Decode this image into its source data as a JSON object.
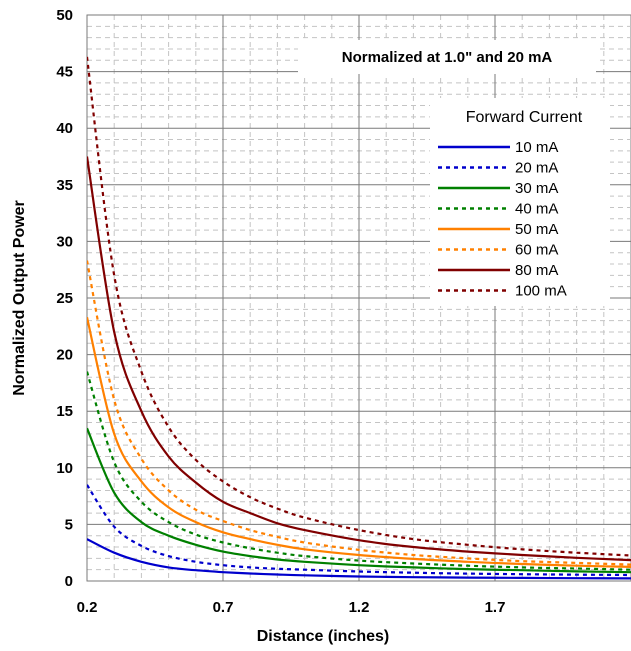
{
  "chart_data": {
    "type": "line",
    "annotation": "Normalized at 1.0\" and 20 mA",
    "xlabel": "Distance (inches)",
    "ylabel": "Normalized Output Power",
    "xlim": [
      0.2,
      2.2
    ],
    "ylim": [
      0,
      50
    ],
    "x_ticks": [
      "0.2",
      "0.7",
      "1.2",
      "1.7"
    ],
    "x_tick_values": [
      0.2,
      0.7,
      1.2,
      1.7
    ],
    "y_ticks": [
      "0",
      "5",
      "10",
      "15",
      "20",
      "25",
      "30",
      "35",
      "40",
      "45",
      "50"
    ],
    "y_tick_values": [
      0,
      5,
      10,
      15,
      20,
      25,
      30,
      35,
      40,
      45,
      50
    ],
    "grid": true,
    "legend_title": "Forward Current",
    "legend_position": "top-right",
    "x": [
      0.2,
      0.3,
      0.4,
      0.5,
      0.6,
      0.7,
      0.8,
      0.9,
      1.0,
      1.2,
      1.4,
      1.6,
      1.8,
      2.0,
      2.2
    ],
    "series": [
      {
        "name": "10 mA",
        "color": "#0000cc",
        "dash": "solid",
        "values": [
          3.7,
          2.5,
          1.7,
          1.2,
          0.95,
          0.78,
          0.66,
          0.57,
          0.5,
          0.4,
          0.34,
          0.3,
          0.27,
          0.25,
          0.23
        ]
      },
      {
        "name": "20 mA",
        "color": "#0000cc",
        "dash": "dotted",
        "values": [
          8.5,
          4.8,
          3.1,
          2.2,
          1.7,
          1.4,
          1.2,
          1.08,
          1.0,
          0.84,
          0.73,
          0.65,
          0.6,
          0.56,
          0.53
        ]
      },
      {
        "name": "30 mA",
        "color": "#008000",
        "dash": "solid",
        "values": [
          13.5,
          7.8,
          5.2,
          4.0,
          3.2,
          2.6,
          2.2,
          1.9,
          1.7,
          1.4,
          1.2,
          1.05,
          0.95,
          0.85,
          0.78
        ]
      },
      {
        "name": "40 mA",
        "color": "#008000",
        "dash": "dotted",
        "values": [
          18.5,
          10.5,
          7.0,
          5.2,
          4.1,
          3.4,
          2.9,
          2.5,
          2.2,
          1.8,
          1.55,
          1.35,
          1.2,
          1.1,
          1.0
        ]
      },
      {
        "name": "50 mA",
        "color": "#ff8000",
        "dash": "solid",
        "values": [
          23.3,
          13.0,
          8.8,
          6.5,
          5.2,
          4.3,
          3.7,
          3.2,
          2.8,
          2.3,
          1.95,
          1.7,
          1.5,
          1.35,
          1.25
        ]
      },
      {
        "name": "60 mA",
        "color": "#ff8000",
        "dash": "dotted",
        "values": [
          28.3,
          16.0,
          10.8,
          8.0,
          6.3,
          5.3,
          4.5,
          3.9,
          3.4,
          2.75,
          2.3,
          2.0,
          1.75,
          1.6,
          1.45
        ]
      },
      {
        "name": "80 mA",
        "color": "#800000",
        "dash": "solid",
        "values": [
          37.5,
          22.0,
          15.0,
          11.0,
          8.7,
          7.0,
          6.0,
          5.1,
          4.5,
          3.6,
          3.0,
          2.6,
          2.3,
          2.05,
          1.85
        ]
      },
      {
        "name": "100 mA",
        "color": "#800000",
        "dash": "dotted",
        "values": [
          46.3,
          27.0,
          18.5,
          13.6,
          10.7,
          8.8,
          7.4,
          6.4,
          5.6,
          4.5,
          3.7,
          3.2,
          2.8,
          2.5,
          2.25
        ]
      }
    ]
  }
}
